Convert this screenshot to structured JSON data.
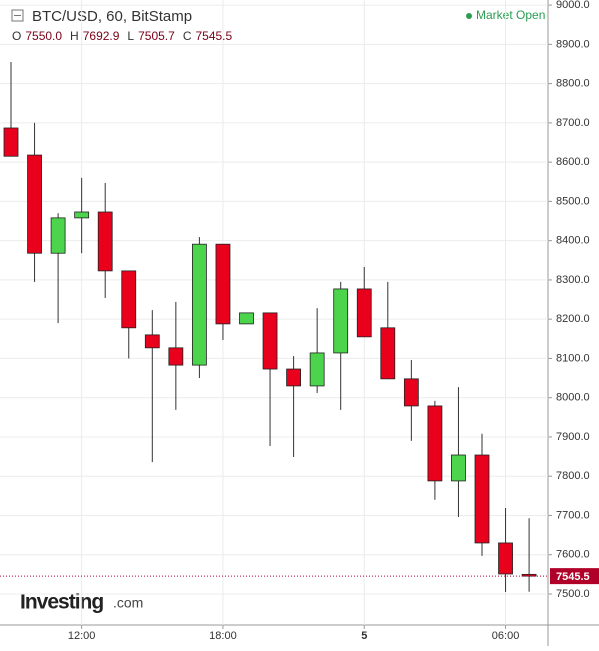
{
  "chart_data": {
    "type": "candlestick",
    "title": "BTC/USD, 60, BitStamp",
    "status": "Market Open",
    "watermark": [
      "Investing",
      ".com"
    ],
    "ohlc_names": [
      "O",
      "H",
      "L",
      "C"
    ],
    "last_labels": [
      "7550.0",
      "7692.9",
      "7505.7",
      "7545.5"
    ],
    "categories": [
      null,
      null,
      null,
      "12:00",
      null,
      null,
      null,
      null,
      null,
      "18:00",
      null,
      null,
      null,
      null,
      null,
      "5",
      null,
      null,
      null,
      null,
      null,
      "06:00",
      null
    ],
    "open": [
      8687,
      8618,
      8368,
      8458,
      8473,
      8323,
      8160,
      8127,
      8083,
      8391,
      8188,
      8216,
      8073,
      8030,
      8114,
      8277,
      8178,
      8048,
      7979,
      7788,
      7854,
      7630,
      7550.0
    ],
    "high": [
      8855,
      8700,
      8470,
      8560,
      8547,
      8323,
      8223,
      8244,
      8409,
      8391,
      8216,
      8216,
      8106,
      8228,
      8295,
      8333,
      8295,
      8096,
      7992,
      8027,
      7908,
      7719,
      7692.9
    ],
    "low": [
      8615,
      8295,
      8190,
      8368,
      8254,
      8100,
      7836,
      7969,
      8050,
      8147,
      8188,
      7877,
      7849,
      8012,
      7969,
      8155,
      8048,
      7890,
      7740,
      7696,
      7597,
      7505,
      7505.7
    ],
    "close": [
      8615,
      8368,
      8458,
      8473,
      8323,
      8178,
      8127,
      8083,
      8391,
      8188,
      8216,
      8073,
      8030,
      8114,
      8277,
      8155,
      8048,
      7979,
      7788,
      7854,
      7630,
      7551,
      7545.5
    ],
    "up_color": "#4cd44c",
    "down_color": "#e8001c",
    "ylim": [
      7421,
      9013
    ],
    "yticks": [
      {
        "value": 7500,
        "label": "7500.0"
      },
      {
        "value": 7600,
        "label": "7600.0"
      },
      {
        "value": 7700,
        "label": "7700.0"
      },
      {
        "value": 7800,
        "label": "7800.0"
      },
      {
        "value": 7900,
        "label": "7900.0"
      },
      {
        "value": 8000,
        "label": "8000.0"
      },
      {
        "value": 8100,
        "label": "8100.0"
      },
      {
        "value": 8200,
        "label": "8200.0"
      },
      {
        "value": 8300,
        "label": "8300.0"
      },
      {
        "value": 8400,
        "label": "8400.0"
      },
      {
        "value": 8500,
        "label": "8500.0"
      },
      {
        "value": 8600,
        "label": "8600.0"
      },
      {
        "value": 8700,
        "label": "8700.0"
      },
      {
        "value": 8800,
        "label": "8800.0"
      },
      {
        "value": 8900,
        "label": "8900.0"
      },
      {
        "value": 9000,
        "label": "9000.0"
      }
    ],
    "grid": true
  }
}
